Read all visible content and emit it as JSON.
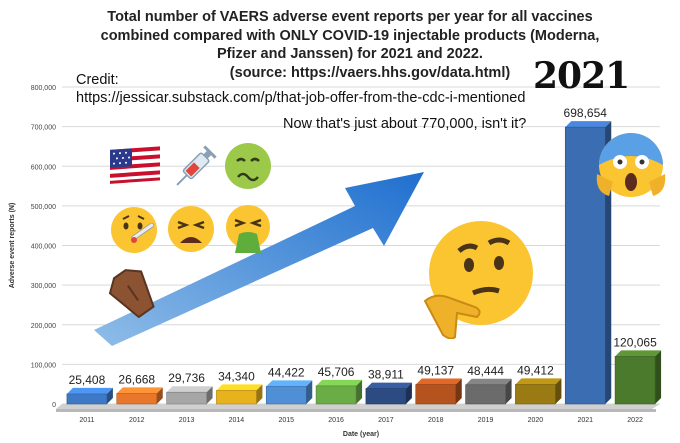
{
  "header": {
    "title_lines": [
      "Total number of VAERS adverse event reports per year for all vaccines",
      "combined compared with ONLY COVID-19 injectable products (Moderna,",
      "Pfizer and Janssen) for 2021 and 2022.",
      "(source: https://vaers.hhs.gov/data.html)"
    ],
    "credit_label": "Credit:",
    "credit_url": "https://jessicar.substack.com/p/that-job-offer-from-the-cdc-i-mentioned",
    "stamp_text": "2021",
    "quip": "Now that's just about 770,000, isn't it?"
  },
  "emojis": [
    "us-flag-icon",
    "syringe-icon",
    "nauseated-face-icon",
    "sick-thermometer-face-icon",
    "tired-face-icon",
    "vomiting-face-icon",
    "coffin-icon",
    "thinking-face-icon",
    "screaming-face-icon"
  ],
  "chart_data": {
    "type": "bar",
    "categories": [
      "2011",
      "2012",
      "2013",
      "2014",
      "2015",
      "2016",
      "2017",
      "2018",
      "2019",
      "2020",
      "2021",
      "2022"
    ],
    "values": [
      25408,
      26668,
      29736,
      34340,
      44422,
      45706,
      38911,
      49137,
      48444,
      49412,
      698654,
      120065
    ],
    "value_labels": [
      "25,408",
      "26,668",
      "29,736",
      "34,340",
      "44,422",
      "45,706",
      "38,911",
      "49,137",
      "48,444",
      "49,412",
      "698,654",
      "120,065"
    ],
    "colors": [
      "#3d79c4",
      "#e8762b",
      "#a6a6a6",
      "#e8b21c",
      "#4e8fd6",
      "#6aac46",
      "#2c4b82",
      "#b5531f",
      "#6b6b6b",
      "#9a7a12",
      "#3b6db3",
      "#4c7a2c"
    ],
    "ylim": [
      0,
      800000
    ],
    "yticks": [
      "0",
      "100,000",
      "200,000",
      "300,000",
      "400,000",
      "500,000",
      "600,000",
      "700,000",
      "800,000"
    ],
    "ylabel": "Adverse event reports (N)",
    "xlabel": "Date (year)",
    "grid": true,
    "arrow_color": "#2f7fd6"
  }
}
